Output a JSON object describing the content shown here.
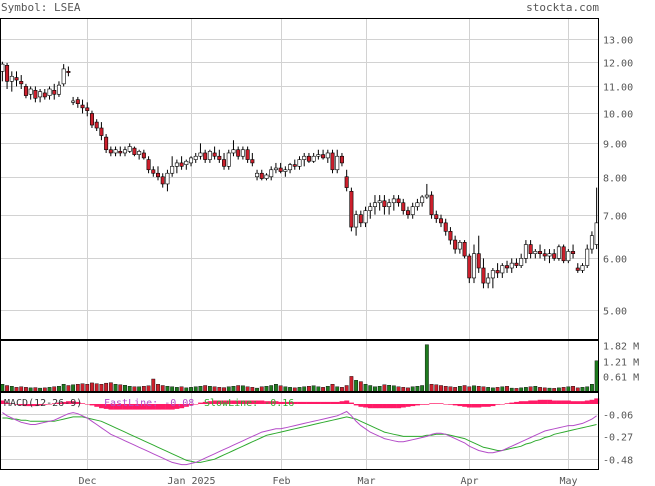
{
  "header": {
    "symbol": "Symbol: LSEA",
    "site": "stockta.com"
  },
  "colors": {
    "up": "#ffffff",
    "down": "#cc1f2c",
    "volume_up": "#1e7a1e",
    "volume_down": "#cc1f2c",
    "histogram": "#ff1a66",
    "fast_line": "#b44cc8",
    "slow_line": "#2eaa2e",
    "grid": "#d2d2d2"
  },
  "chart_data": [
    {
      "type": "candlestick",
      "name": "price",
      "y_scale": "log",
      "ylim": [
        4.5,
        14.0
      ],
      "y_ticks": [
        "13.00",
        "12.00",
        "11.00",
        "10.00",
        "9.00",
        "8.00",
        "7.00",
        "6.00",
        "5.00"
      ],
      "x_labels": [
        "Dec",
        "Jan 2025",
        "Feb",
        "Mar",
        "Apr",
        "May"
      ],
      "x_label_index": [
        18,
        40,
        59,
        77,
        99,
        120
      ],
      "ohlc": [
        [
          11.6,
          12.0,
          11.2,
          11.9
        ],
        [
          11.85,
          11.95,
          10.9,
          11.2
        ],
        [
          11.2,
          11.6,
          10.8,
          11.4
        ],
        [
          11.35,
          11.6,
          11.0,
          11.25
        ],
        [
          11.2,
          11.45,
          10.9,
          11.1
        ],
        [
          11.0,
          11.1,
          10.55,
          10.65
        ],
        [
          10.7,
          11.0,
          10.5,
          10.9
        ],
        [
          10.85,
          11.0,
          10.4,
          10.55
        ],
        [
          10.6,
          10.9,
          10.4,
          10.8
        ],
        [
          10.75,
          10.9,
          10.5,
          10.6
        ],
        [
          10.65,
          11.0,
          10.5,
          10.9
        ],
        [
          10.85,
          11.1,
          10.5,
          10.7
        ],
        [
          10.7,
          11.2,
          10.6,
          11.05
        ],
        [
          11.1,
          11.9,
          11.0,
          11.7
        ],
        [
          11.6,
          11.8,
          11.4,
          11.55
        ],
        [
          10.4,
          10.6,
          10.3,
          10.45
        ],
        [
          10.5,
          10.6,
          10.2,
          10.35
        ],
        [
          10.3,
          10.5,
          10.0,
          10.2
        ],
        [
          10.2,
          10.4,
          9.9,
          10.1
        ],
        [
          10.0,
          10.1,
          9.5,
          9.6
        ],
        [
          9.7,
          9.8,
          9.4,
          9.5
        ],
        [
          9.5,
          9.7,
          9.1,
          9.25
        ],
        [
          9.2,
          9.3,
          8.7,
          8.8
        ],
        [
          8.8,
          8.9,
          8.6,
          8.7
        ],
        [
          8.7,
          8.9,
          8.6,
          8.8
        ],
        [
          8.75,
          8.9,
          8.6,
          8.7
        ],
        [
          8.7,
          8.9,
          8.6,
          8.8
        ],
        [
          8.75,
          9.0,
          8.7,
          8.9
        ],
        [
          8.85,
          8.9,
          8.6,
          8.65
        ],
        [
          8.65,
          8.8,
          8.5,
          8.75
        ],
        [
          8.7,
          8.8,
          8.5,
          8.55
        ],
        [
          8.5,
          8.6,
          8.1,
          8.2
        ],
        [
          8.2,
          8.3,
          8.0,
          8.1
        ],
        [
          8.1,
          8.3,
          7.9,
          8.0
        ],
        [
          8.0,
          8.1,
          7.7,
          7.8
        ],
        [
          7.8,
          8.2,
          7.6,
          8.1
        ],
        [
          8.1,
          8.6,
          8.0,
          8.3
        ],
        [
          8.3,
          8.5,
          8.1,
          8.4
        ],
        [
          8.4,
          8.6,
          8.2,
          8.3
        ],
        [
          8.35,
          8.5,
          8.2,
          8.45
        ],
        [
          8.4,
          8.6,
          8.3,
          8.55
        ],
        [
          8.5,
          8.7,
          8.4,
          8.6
        ],
        [
          8.6,
          9.0,
          8.5,
          8.7
        ],
        [
          8.7,
          8.8,
          8.4,
          8.5
        ],
        [
          8.5,
          8.8,
          8.4,
          8.75
        ],
        [
          8.7,
          8.9,
          8.5,
          8.6
        ],
        [
          8.6,
          8.8,
          8.4,
          8.5
        ],
        [
          8.5,
          8.7,
          8.2,
          8.3
        ],
        [
          8.3,
          8.8,
          8.2,
          8.7
        ],
        [
          8.7,
          9.1,
          8.6,
          8.8
        ],
        [
          8.8,
          8.9,
          8.5,
          8.6
        ],
        [
          8.6,
          8.9,
          8.5,
          8.8
        ],
        [
          8.8,
          8.9,
          8.4,
          8.5
        ],
        [
          8.5,
          8.7,
          8.3,
          8.4
        ],
        [
          8.0,
          8.2,
          7.9,
          8.1
        ],
        [
          8.1,
          8.2,
          7.9,
          7.95
        ],
        [
          7.95,
          8.1,
          7.9,
          8.05
        ],
        [
          8.0,
          8.3,
          7.9,
          8.2
        ],
        [
          8.2,
          8.4,
          8.1,
          8.25
        ],
        [
          8.25,
          8.4,
          8.1,
          8.15
        ],
        [
          8.15,
          8.3,
          8.0,
          8.2
        ],
        [
          8.2,
          8.4,
          8.1,
          8.35
        ],
        [
          8.35,
          8.5,
          8.2,
          8.3
        ],
        [
          8.3,
          8.6,
          8.2,
          8.5
        ],
        [
          8.5,
          8.7,
          8.3,
          8.6
        ],
        [
          8.6,
          8.7,
          8.4,
          8.45
        ],
        [
          8.45,
          8.7,
          8.4,
          8.6
        ],
        [
          8.6,
          8.8,
          8.5,
          8.65
        ],
        [
          8.65,
          8.8,
          8.5,
          8.55
        ],
        [
          8.55,
          8.8,
          8.4,
          8.7
        ],
        [
          8.7,
          8.8,
          8.1,
          8.2
        ],
        [
          8.2,
          8.8,
          8.1,
          8.6
        ],
        [
          8.6,
          8.7,
          8.3,
          8.4
        ],
        [
          8.0,
          8.2,
          7.6,
          7.7
        ],
        [
          7.6,
          7.7,
          6.6,
          6.7
        ],
        [
          6.7,
          7.1,
          6.5,
          7.0
        ],
        [
          7.0,
          7.1,
          6.7,
          6.8
        ],
        [
          6.8,
          7.2,
          6.7,
          7.1
        ],
        [
          7.1,
          7.3,
          6.9,
          7.2
        ],
        [
          7.2,
          7.5,
          7.0,
          7.3
        ],
        [
          7.3,
          7.5,
          7.1,
          7.35
        ],
        [
          7.35,
          7.5,
          7.0,
          7.2
        ],
        [
          7.2,
          7.4,
          7.0,
          7.3
        ],
        [
          7.3,
          7.5,
          7.1,
          7.4
        ],
        [
          7.4,
          7.5,
          7.2,
          7.3
        ],
        [
          7.3,
          7.4,
          7.0,
          7.1
        ],
        [
          7.1,
          7.2,
          6.9,
          7.0
        ],
        [
          7.0,
          7.3,
          6.9,
          7.2
        ],
        [
          7.2,
          7.4,
          7.1,
          7.3
        ],
        [
          7.3,
          7.5,
          7.2,
          7.45
        ],
        [
          7.45,
          7.8,
          7.4,
          7.5
        ],
        [
          7.5,
          7.6,
          6.9,
          7.0
        ],
        [
          7.0,
          7.1,
          6.8,
          6.9
        ],
        [
          6.9,
          7.0,
          6.7,
          6.8
        ],
        [
          6.8,
          6.9,
          6.5,
          6.6
        ],
        [
          6.6,
          6.7,
          6.3,
          6.4
        ],
        [
          6.4,
          6.5,
          6.1,
          6.2
        ],
        [
          6.2,
          6.4,
          6.1,
          6.35
        ],
        [
          6.35,
          6.4,
          6.0,
          6.05
        ],
        [
          6.05,
          6.1,
          5.5,
          5.6
        ],
        [
          5.6,
          6.3,
          5.5,
          6.1
        ],
        [
          6.1,
          6.5,
          5.7,
          5.8
        ],
        [
          5.8,
          6.0,
          5.4,
          5.5
        ],
        [
          5.5,
          5.7,
          5.4,
          5.6
        ],
        [
          5.6,
          5.8,
          5.4,
          5.75
        ],
        [
          5.75,
          5.9,
          5.6,
          5.7
        ],
        [
          5.7,
          5.9,
          5.6,
          5.85
        ],
        [
          5.85,
          5.95,
          5.7,
          5.8
        ],
        [
          5.8,
          6.0,
          5.7,
          5.9
        ],
        [
          5.9,
          6.0,
          5.8,
          5.85
        ],
        [
          5.85,
          6.1,
          5.8,
          6.0
        ],
        [
          6.0,
          6.4,
          5.9,
          6.3
        ],
        [
          6.3,
          6.4,
          6.0,
          6.1
        ],
        [
          6.1,
          6.2,
          6.0,
          6.15
        ],
        [
          6.15,
          6.3,
          6.0,
          6.1
        ],
        [
          6.1,
          6.2,
          5.95,
          6.05
        ],
        [
          6.05,
          6.2,
          5.9,
          6.1
        ],
        [
          6.1,
          6.2,
          5.95,
          6.0
        ],
        [
          6.0,
          6.3,
          5.95,
          6.25
        ],
        [
          6.25,
          6.3,
          5.9,
          5.95
        ],
        [
          5.95,
          6.2,
          5.9,
          6.15
        ],
        [
          6.15,
          6.3,
          6.0,
          6.1
        ],
        [
          5.8,
          5.9,
          5.7,
          5.75
        ],
        [
          5.75,
          5.9,
          5.7,
          5.85
        ],
        [
          5.85,
          6.3,
          5.8,
          6.2
        ],
        [
          6.2,
          6.6,
          6.1,
          6.5
        ],
        [
          6.3,
          7.7,
          6.2,
          6.8
        ]
      ]
    },
    {
      "type": "bar",
      "name": "volume",
      "ylim": [
        0,
        2.0
      ],
      "y_ticks": [
        "1.82 M",
        "1.21 M",
        "0.61 M"
      ],
      "values": [
        0.3,
        0.25,
        0.22,
        0.18,
        0.2,
        0.18,
        0.16,
        0.17,
        0.15,
        0.16,
        0.18,
        0.2,
        0.22,
        0.3,
        0.25,
        0.28,
        0.3,
        0.32,
        0.3,
        0.35,
        0.32,
        0.3,
        0.34,
        0.36,
        0.3,
        0.28,
        0.26,
        0.22,
        0.2,
        0.2,
        0.22,
        0.24,
        0.5,
        0.3,
        0.25,
        0.22,
        0.2,
        0.18,
        0.2,
        0.16,
        0.18,
        0.2,
        0.22,
        0.25,
        0.22,
        0.2,
        0.18,
        0.17,
        0.2,
        0.22,
        0.25,
        0.24,
        0.2,
        0.18,
        0.15,
        0.2,
        0.22,
        0.25,
        0.3,
        0.24,
        0.2,
        0.18,
        0.16,
        0.18,
        0.2,
        0.22,
        0.24,
        0.2,
        0.18,
        0.22,
        0.3,
        0.2,
        0.18,
        0.25,
        0.6,
        0.45,
        0.4,
        0.3,
        0.25,
        0.2,
        0.22,
        0.28,
        0.26,
        0.24,
        0.2,
        0.18,
        0.16,
        0.2,
        0.22,
        0.25,
        1.82,
        0.3,
        0.28,
        0.25,
        0.22,
        0.2,
        0.18,
        0.22,
        0.25,
        0.2,
        0.24,
        0.22,
        0.2,
        0.18,
        0.16,
        0.18,
        0.2,
        0.22,
        0.15,
        0.14,
        0.16,
        0.18,
        0.2,
        0.22,
        0.18,
        0.16,
        0.15,
        0.14,
        0.16,
        0.18,
        0.2,
        0.22,
        0.16,
        0.18,
        0.2,
        0.3,
        1.2
      ],
      "direction": "up:green,down:red"
    },
    {
      "type": "macd",
      "name": "MACD",
      "title": "MACD(12-26-9)",
      "fast_label": "FastLine: -0.08",
      "slow_label": "SlowLine: -0.16",
      "ylim": [
        -0.58,
        0.14
      ],
      "y_ticks": [
        "-0.06",
        "-0.27",
        "-0.48"
      ],
      "fast": [
        -0.05,
        -0.08,
        -0.1,
        -0.12,
        -0.14,
        -0.15,
        -0.16,
        -0.16,
        -0.15,
        -0.14,
        -0.13,
        -0.12,
        -0.1,
        -0.08,
        -0.06,
        -0.05,
        -0.06,
        -0.08,
        -0.1,
        -0.13,
        -0.16,
        -0.19,
        -0.22,
        -0.25,
        -0.27,
        -0.29,
        -0.31,
        -0.33,
        -0.35,
        -0.37,
        -0.39,
        -0.41,
        -0.43,
        -0.45,
        -0.47,
        -0.49,
        -0.51,
        -0.52,
        -0.53,
        -0.53,
        -0.52,
        -0.51,
        -0.49,
        -0.47,
        -0.45,
        -0.43,
        -0.41,
        -0.39,
        -0.37,
        -0.35,
        -0.33,
        -0.31,
        -0.29,
        -0.27,
        -0.25,
        -0.23,
        -0.22,
        -0.21,
        -0.2,
        -0.2,
        -0.19,
        -0.18,
        -0.17,
        -0.16,
        -0.15,
        -0.14,
        -0.13,
        -0.12,
        -0.11,
        -0.1,
        -0.09,
        -0.08,
        -0.06,
        -0.04,
        -0.08,
        -0.13,
        -0.17,
        -0.2,
        -0.23,
        -0.25,
        -0.27,
        -0.29,
        -0.3,
        -0.31,
        -0.32,
        -0.32,
        -0.31,
        -0.3,
        -0.29,
        -0.28,
        -0.27,
        -0.25,
        -0.24,
        -0.24,
        -0.25,
        -0.27,
        -0.29,
        -0.31,
        -0.33,
        -0.36,
        -0.38,
        -0.4,
        -0.41,
        -0.42,
        -0.42,
        -0.41,
        -0.4,
        -0.38,
        -0.36,
        -0.34,
        -0.32,
        -0.3,
        -0.28,
        -0.26,
        -0.24,
        -0.22,
        -0.21,
        -0.2,
        -0.19,
        -0.18,
        -0.17,
        -0.17,
        -0.16,
        -0.15,
        -0.13,
        -0.11,
        -0.08
      ],
      "slow": [
        -0.1,
        -0.1,
        -0.11,
        -0.11,
        -0.12,
        -0.12,
        -0.13,
        -0.13,
        -0.13,
        -0.13,
        -0.13,
        -0.13,
        -0.12,
        -0.11,
        -0.1,
        -0.09,
        -0.09,
        -0.09,
        -0.1,
        -0.11,
        -0.12,
        -0.13,
        -0.15,
        -0.17,
        -0.19,
        -0.21,
        -0.23,
        -0.25,
        -0.27,
        -0.29,
        -0.31,
        -0.33,
        -0.35,
        -0.37,
        -0.39,
        -0.41,
        -0.43,
        -0.45,
        -0.47,
        -0.49,
        -0.5,
        -0.51,
        -0.51,
        -0.5,
        -0.49,
        -0.48,
        -0.46,
        -0.44,
        -0.42,
        -0.4,
        -0.38,
        -0.36,
        -0.34,
        -0.32,
        -0.3,
        -0.28,
        -0.26,
        -0.25,
        -0.24,
        -0.23,
        -0.22,
        -0.21,
        -0.2,
        -0.19,
        -0.18,
        -0.17,
        -0.16,
        -0.15,
        -0.14,
        -0.13,
        -0.12,
        -0.11,
        -0.1,
        -0.09,
        -0.1,
        -0.11,
        -0.13,
        -0.15,
        -0.17,
        -0.19,
        -0.21,
        -0.23,
        -0.24,
        -0.25,
        -0.26,
        -0.27,
        -0.27,
        -0.27,
        -0.27,
        -0.27,
        -0.26,
        -0.26,
        -0.25,
        -0.25,
        -0.25,
        -0.26,
        -0.27,
        -0.28,
        -0.29,
        -0.31,
        -0.33,
        -0.35,
        -0.37,
        -0.38,
        -0.39,
        -0.4,
        -0.4,
        -0.39,
        -0.38,
        -0.37,
        -0.36,
        -0.34,
        -0.33,
        -0.31,
        -0.3,
        -0.28,
        -0.27,
        -0.25,
        -0.24,
        -0.23,
        -0.22,
        -0.21,
        -0.2,
        -0.19,
        -0.18,
        -0.17,
        -0.16
      ]
    }
  ]
}
